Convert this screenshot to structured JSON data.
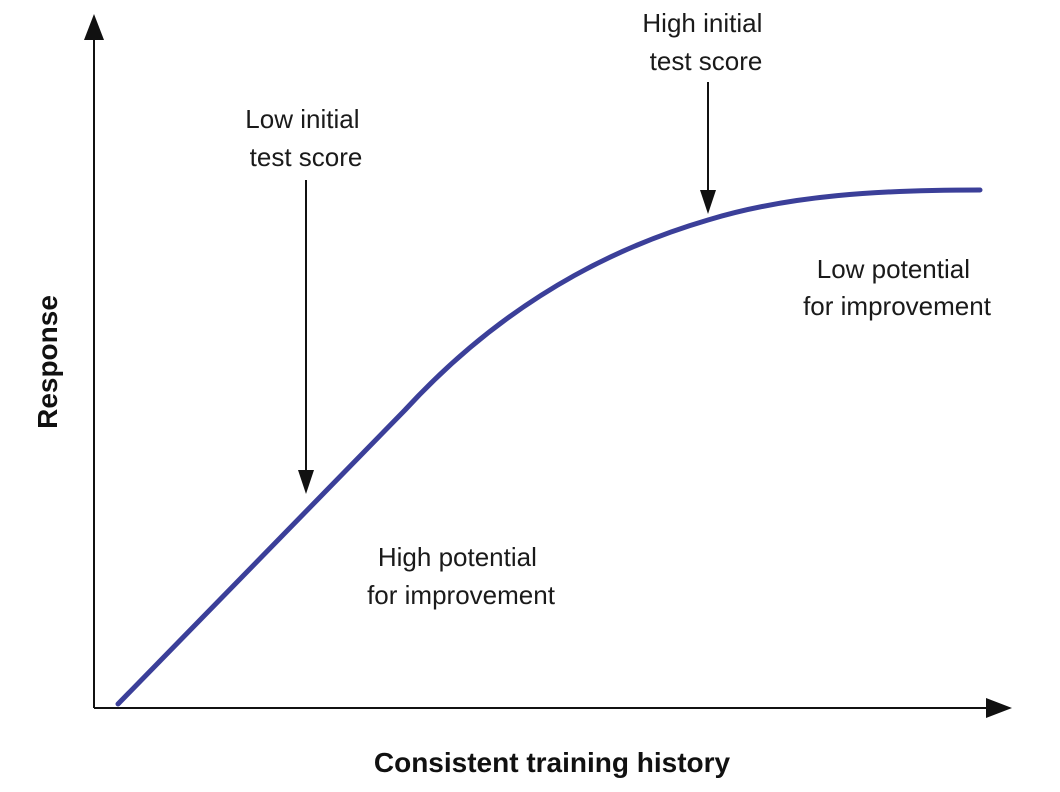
{
  "axes": {
    "x_label": "Consistent training history",
    "y_label": "Response"
  },
  "curve": {
    "color": "#3b3f99",
    "shape": "saturating"
  },
  "annotations": {
    "low_initial": [
      "Low initial",
      "test score"
    ],
    "high_initial": [
      "High initial",
      "test score"
    ],
    "high_potential": [
      "High potential",
      "for improvement"
    ],
    "low_potential": [
      "Low potential",
      "for improvement"
    ]
  }
}
